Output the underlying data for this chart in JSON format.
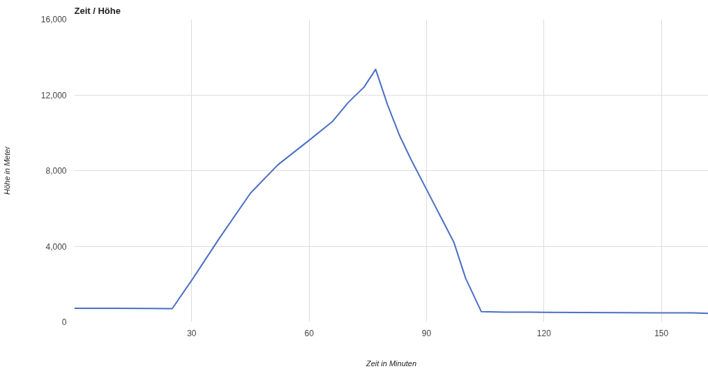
{
  "chart_data": {
    "type": "line",
    "title": "Zeit / Höhe",
    "xlabel": "Zeit in Minuten",
    "ylabel": "Höhe in Meter",
    "x": [
      0,
      10,
      20,
      25,
      30,
      37,
      45,
      52,
      60,
      66,
      70,
      74,
      77,
      80,
      83,
      86,
      90,
      94,
      97,
      100,
      104,
      110,
      120,
      130,
      140,
      150,
      158,
      162
    ],
    "series": [
      {
        "color": "#4a6fc4",
        "values": [
          720,
          720,
          710,
          700,
          2200,
          4400,
          6800,
          8300,
          9600,
          10600,
          11600,
          12400,
          13350,
          11500,
          9900,
          8600,
          7000,
          5400,
          4200,
          2300,
          540,
          520,
          510,
          500,
          490,
          480,
          480,
          450
        ]
      }
    ],
    "xlim": [
      0,
      162
    ],
    "xticks": [
      30,
      60,
      90,
      120,
      150
    ],
    "ylim": [
      0,
      16000
    ],
    "yticks": [
      {
        "value": 0,
        "label": "0"
      },
      {
        "value": 4000,
        "label": "4,000"
      },
      {
        "value": 8000,
        "label": "8,000"
      },
      {
        "value": 12000,
        "label": "12,000"
      },
      {
        "value": 16000,
        "label": "16,000"
      }
    ],
    "grid": true,
    "marker": "none",
    "line_style": "solid"
  }
}
